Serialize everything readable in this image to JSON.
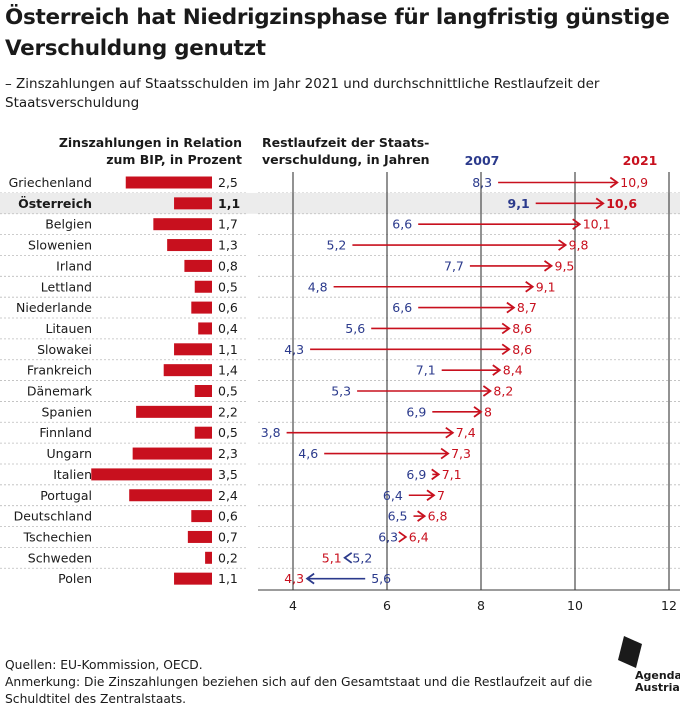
{
  "title": "Österreich hat Niedrigzinsphase für langfristig günstige Verschuldung genutzt",
  "subtitle": "– Zinszahlungen auf Staatsschulden im Jahr 2021 und durchschnittliche Restlaufzeit der Staatsverschuldung",
  "sources": "Quellen: EU-Kommission, OECD.",
  "note": "Anmerkung: Die Zinszahlungen beziehen sich auf den Gesamtstaat und die Restlaufzeit auf die Schuldtitel des Zentralstaats.",
  "logo": {
    "line1": "Agenda",
    "line2": "Austria"
  },
  "colors": {
    "red": "#c8101e",
    "blue": "#2b3a8c",
    "text": "#1a1a1a",
    "highlight": "#ececec",
    "grid": "#3a3a3a",
    "separator": "#bcbcbc"
  },
  "chart_data": [
    {
      "type": "bar",
      "title": "Zinszahlungen in Relation zum BIP, in Prozent",
      "categories": [
        "Griechenland",
        "Österreich",
        "Belgien",
        "Slowenien",
        "Irland",
        "Lettland",
        "Niederlande",
        "Litauen",
        "Slowakei",
        "Frankreich",
        "Dänemark",
        "Spanien",
        "Finnland",
        "Ungarn",
        "Italien",
        "Portugal",
        "Deutschland",
        "Tschechien",
        "Schweden",
        "Polen"
      ],
      "values": [
        2.5,
        1.1,
        1.7,
        1.3,
        0.8,
        0.5,
        0.6,
        0.4,
        1.1,
        1.4,
        0.5,
        2.2,
        0.5,
        2.3,
        3.5,
        2.4,
        0.6,
        0.7,
        0.2,
        1.1
      ],
      "value_labels": [
        "2,5",
        "1,1",
        "1,7",
        "1,3",
        "0,8",
        "0,5",
        "0,6",
        "0,4",
        "1,1",
        "1,4",
        "0,5",
        "2,2",
        "0,5",
        "2,3",
        "3,5",
        "2,4",
        "0,6",
        "0,7",
        "0,2",
        "1,1"
      ],
      "highlight": "Österreich",
      "color": "#c8101e"
    },
    {
      "type": "arrow",
      "title": "Restlaufzeit der Staatsverschuldung, in Jahren",
      "title_lines": [
        "Restlaufzeit der Staats-",
        "verschuldung, in Jahren"
      ],
      "xlim": [
        3.5,
        12.5
      ],
      "xticks": [
        4,
        6,
        8,
        10,
        12
      ],
      "grid": true,
      "series": [
        {
          "name": "2007",
          "color": "#2b3a8c",
          "values": [
            8.3,
            9.1,
            6.6,
            5.2,
            7.7,
            4.8,
            6.6,
            5.6,
            4.3,
            7.1,
            5.3,
            6.9,
            3.8,
            4.6,
            6.9,
            6.4,
            6.5,
            6.3,
            5.2,
            5.6
          ],
          "labels": [
            "8,3",
            "9,1",
            "6,6",
            "5,2",
            "7,7",
            "4,8",
            "6,6",
            "5,6",
            "4,3",
            "7,1",
            "5,3",
            "6,9",
            "3,8",
            "4,6",
            "6,9",
            "6,4",
            "6,5",
            "6,3",
            "5,2",
            "5,6"
          ]
        },
        {
          "name": "2021",
          "color": "#c8101e",
          "values": [
            10.9,
            10.6,
            10.1,
            9.8,
            9.5,
            9.1,
            8.7,
            8.6,
            8.6,
            8.4,
            8.2,
            8.0,
            7.4,
            7.3,
            7.1,
            7.0,
            6.8,
            6.4,
            5.1,
            4.3
          ],
          "labels": [
            "10,9",
            "10,6",
            "10,1",
            "9,8",
            "9,5",
            "9,1",
            "8,7",
            "8,6",
            "8,6",
            "8,4",
            "8,2",
            "8",
            "7,4",
            "7,3",
            "7,1",
            "7",
            "6,8",
            "6,4",
            "5,1",
            "4,3"
          ]
        }
      ]
    }
  ]
}
